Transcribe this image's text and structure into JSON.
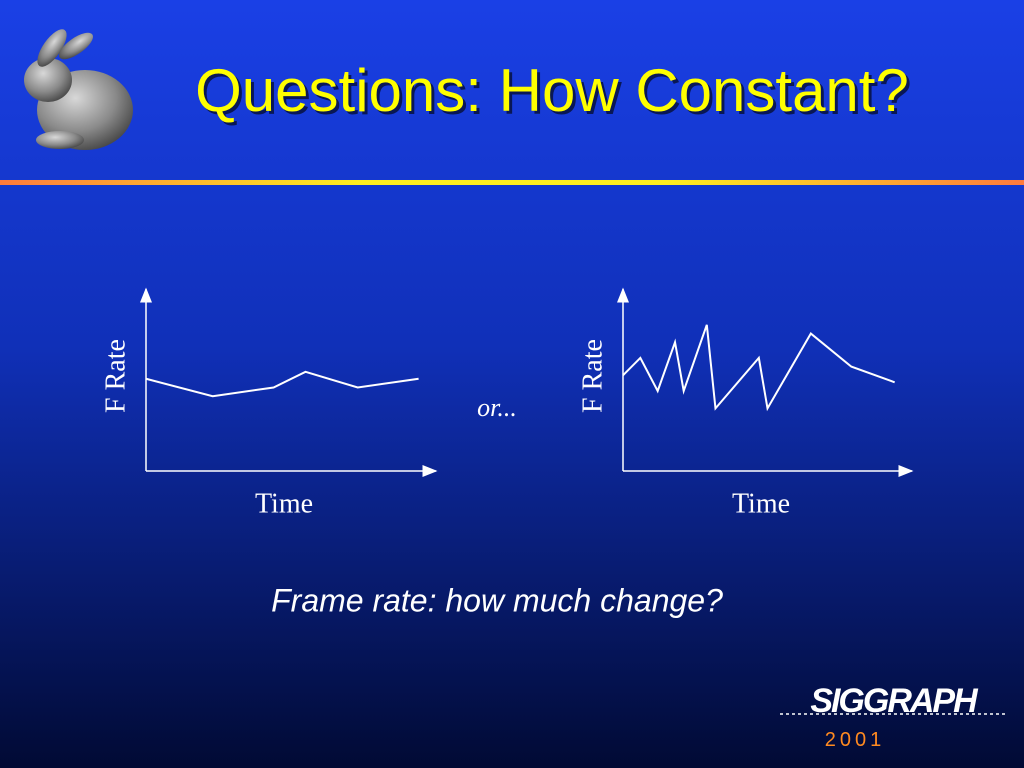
{
  "title": "Questions: How Constant?",
  "connector": "or...",
  "caption": "Frame rate: how much change?",
  "logo": {
    "name": "SIGGRAPH",
    "year": "2001"
  },
  "chart_data": [
    {
      "type": "line",
      "ylabel": "F Rate",
      "xlabel": "Time",
      "color": "#ffffff",
      "xlim": [
        0,
        100
      ],
      "ylim": [
        0,
        100
      ],
      "x": [
        0,
        23,
        44,
        55,
        73,
        94
      ],
      "values": [
        53,
        43,
        48,
        57,
        48,
        53
      ]
    },
    {
      "type": "line",
      "ylabel": "F Rate",
      "xlabel": "Time",
      "color": "#ffffff",
      "xlim": [
        0,
        100
      ],
      "ylim": [
        0,
        100
      ],
      "x": [
        0,
        6,
        12,
        18,
        21,
        29,
        32,
        47,
        50,
        65,
        79,
        94
      ],
      "values": [
        55,
        65,
        46,
        74,
        46,
        84,
        36,
        65,
        36,
        79,
        60,
        51
      ]
    }
  ]
}
